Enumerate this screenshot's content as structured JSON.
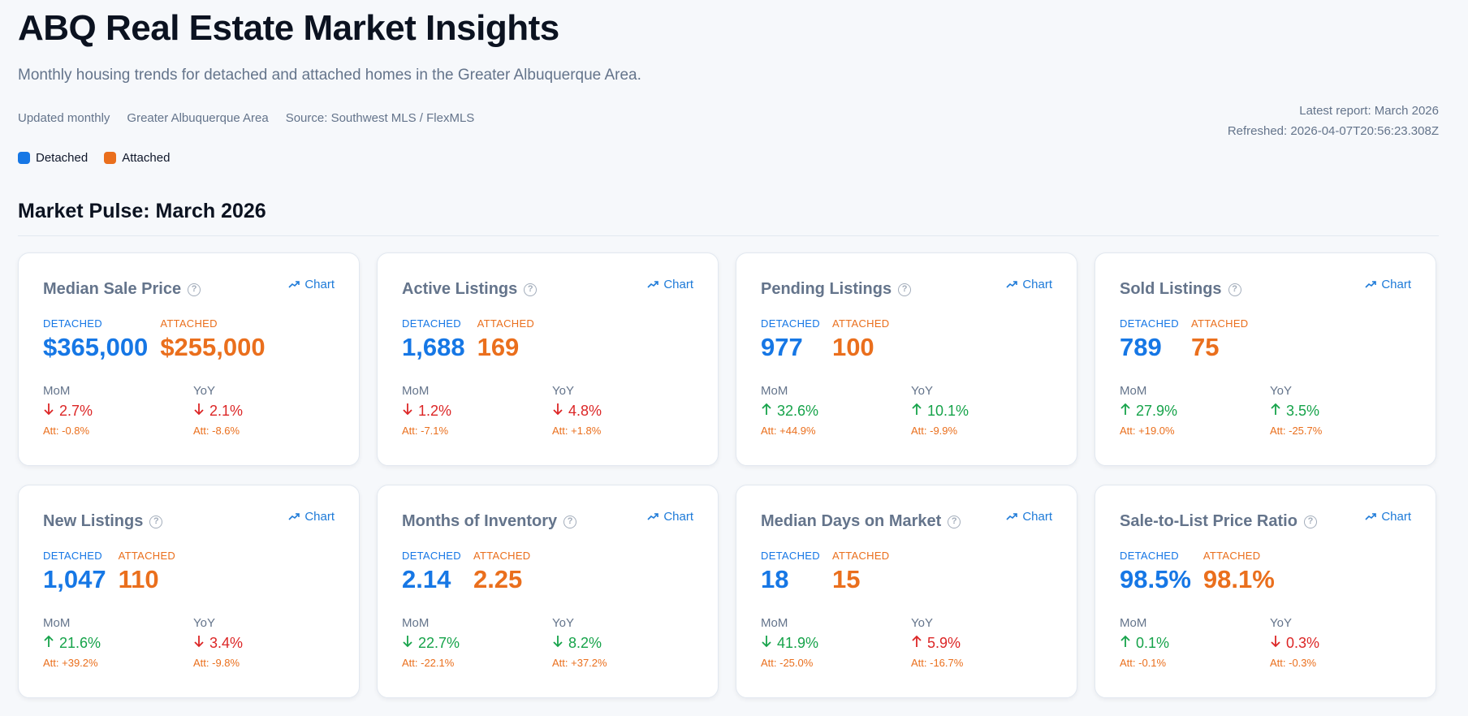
{
  "header": {
    "title": "ABQ Real Estate Market Insights",
    "subtitle": "Monthly housing trends for detached and attached homes in the Greater Albuquerque Area.",
    "meta": [
      "Updated monthly",
      "Greater Albuquerque Area",
      "Source: Southwest MLS / FlexMLS"
    ],
    "latest_report": "Latest report: March 2026",
    "refreshed": "Refreshed: 2026-04-07T20:56:23.308Z"
  },
  "legend": [
    {
      "label": "Detached",
      "color": "#1677e5"
    },
    {
      "label": "Attached",
      "color": "#ea6f1d"
    }
  ],
  "section_title": "Market Pulse: March 2026",
  "labels": {
    "detached": "DETACHED",
    "attached": "ATTACHED",
    "mom": "MoM",
    "yoy": "YoY",
    "chart": "Chart",
    "help": "?"
  },
  "colors": {
    "detached": "#1677e5",
    "attached": "#ea6f1d",
    "up": "#16a34a",
    "down": "#dc2626"
  },
  "cards": [
    {
      "title": "Median Sale Price",
      "detached": "$365,000",
      "attached": "$255,000",
      "mom": {
        "dir": "down",
        "tone": "down",
        "value": "2.7%",
        "att": "Att: -0.8%"
      },
      "yoy": {
        "dir": "down",
        "tone": "down",
        "value": "2.1%",
        "att": "Att: -8.6%"
      }
    },
    {
      "title": "Active Listings",
      "detached": "1,688",
      "attached": "169",
      "mom": {
        "dir": "down",
        "tone": "down",
        "value": "1.2%",
        "att": "Att: -7.1%"
      },
      "yoy": {
        "dir": "down",
        "tone": "down",
        "value": "4.8%",
        "att": "Att: +1.8%"
      }
    },
    {
      "title": "Pending Listings",
      "detached": "977",
      "attached": "100",
      "mom": {
        "dir": "up",
        "tone": "up",
        "value": "32.6%",
        "att": "Att: +44.9%"
      },
      "yoy": {
        "dir": "up",
        "tone": "up",
        "value": "10.1%",
        "att": "Att: -9.9%"
      }
    },
    {
      "title": "Sold Listings",
      "detached": "789",
      "attached": "75",
      "mom": {
        "dir": "up",
        "tone": "up",
        "value": "27.9%",
        "att": "Att: +19.0%"
      },
      "yoy": {
        "dir": "up",
        "tone": "up",
        "value": "3.5%",
        "att": "Att: -25.7%"
      }
    },
    {
      "title": "New Listings",
      "detached": "1,047",
      "attached": "110",
      "mom": {
        "dir": "up",
        "tone": "up",
        "value": "21.6%",
        "att": "Att: +39.2%"
      },
      "yoy": {
        "dir": "down",
        "tone": "down",
        "value": "3.4%",
        "att": "Att: -9.8%"
      }
    },
    {
      "title": "Months of Inventory",
      "detached": "2.14",
      "attached": "2.25",
      "mom": {
        "dir": "down",
        "tone": "up",
        "value": "22.7%",
        "att": "Att: -22.1%"
      },
      "yoy": {
        "dir": "down",
        "tone": "up",
        "value": "8.2%",
        "att": "Att: +37.2%"
      }
    },
    {
      "title": "Median Days on Market",
      "detached": "18",
      "attached": "15",
      "mom": {
        "dir": "down",
        "tone": "up",
        "value": "41.9%",
        "att": "Att: -25.0%"
      },
      "yoy": {
        "dir": "up",
        "tone": "down",
        "value": "5.9%",
        "att": "Att: -16.7%"
      }
    },
    {
      "title": "Sale-to-List Price Ratio",
      "detached": "98.5%",
      "attached": "98.1%",
      "mom": {
        "dir": "up",
        "tone": "up",
        "value": "0.1%",
        "att": "Att: -0.1%"
      },
      "yoy": {
        "dir": "down",
        "tone": "down",
        "value": "0.3%",
        "att": "Att: -0.3%"
      }
    }
  ]
}
